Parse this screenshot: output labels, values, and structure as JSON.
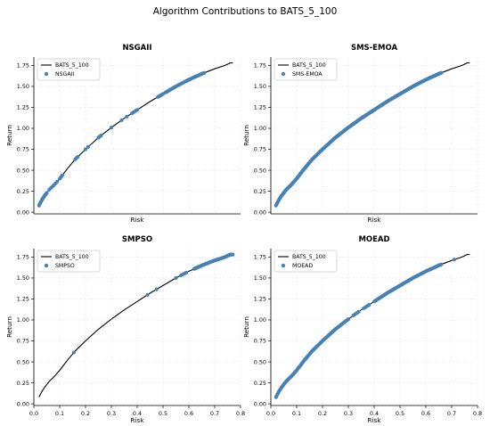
{
  "figure": {
    "title": "Algorithm Contributions to BATS_5_100"
  },
  "chart_data": [
    {
      "type": "scatter",
      "title": "NSGAII",
      "xlabel": "Risk",
      "ylabel": "Return",
      "xlim": [
        0,
        0.8
      ],
      "ylim": [
        -0.02,
        1.85
      ],
      "x_ticks_visible": false,
      "grid": true,
      "legend_position": "top-left",
      "line_series": {
        "name": "BATS_5_100",
        "color": "#000000",
        "x": [
          0.02,
          0.03,
          0.04,
          0.05,
          0.06,
          0.08,
          0.1,
          0.13,
          0.16,
          0.2,
          0.25,
          0.3,
          0.35,
          0.4,
          0.45,
          0.5,
          0.55,
          0.6,
          0.65,
          0.7,
          0.74,
          0.76,
          0.77
        ],
        "y": [
          0.08,
          0.14,
          0.19,
          0.23,
          0.27,
          0.33,
          0.4,
          0.52,
          0.63,
          0.75,
          0.89,
          1.01,
          1.12,
          1.22,
          1.32,
          1.41,
          1.5,
          1.58,
          1.65,
          1.71,
          1.75,
          1.78,
          1.78
        ]
      },
      "scatter_series": {
        "name": "NSGAII",
        "color": "#4682b4",
        "segments": [
          [
            0.02,
            0.05,
            14
          ],
          [
            0.06,
            0.09,
            6
          ],
          [
            0.1,
            0.11,
            3
          ],
          [
            0.16,
            0.17,
            3
          ],
          [
            0.2,
            0.21,
            2
          ],
          [
            0.25,
            0.26,
            3
          ],
          [
            0.3,
            0.31,
            1
          ],
          [
            0.34,
            0.36,
            2
          ],
          [
            0.38,
            0.4,
            4
          ],
          [
            0.48,
            0.5,
            5
          ],
          [
            0.51,
            0.66,
            45
          ]
        ]
      }
    },
    {
      "type": "scatter",
      "title": "SMS-EMOA",
      "xlabel": "Risk",
      "ylabel": "Return",
      "xlim": [
        0,
        0.8
      ],
      "ylim": [
        -0.02,
        1.85
      ],
      "x_ticks_visible": false,
      "grid": true,
      "legend_position": "top-left",
      "line_series": {
        "name": "BATS_5_100",
        "color": "#000000",
        "x": [
          0.02,
          0.03,
          0.04,
          0.05,
          0.06,
          0.08,
          0.1,
          0.13,
          0.16,
          0.2,
          0.25,
          0.3,
          0.35,
          0.4,
          0.45,
          0.5,
          0.55,
          0.6,
          0.65,
          0.7,
          0.74,
          0.76,
          0.77
        ],
        "y": [
          0.08,
          0.14,
          0.19,
          0.23,
          0.27,
          0.33,
          0.4,
          0.52,
          0.63,
          0.75,
          0.89,
          1.01,
          1.12,
          1.22,
          1.32,
          1.41,
          1.5,
          1.58,
          1.65,
          1.71,
          1.75,
          1.78,
          1.78
        ]
      },
      "scatter_series": {
        "name": "SMS-EMOA",
        "color": "#4682b4",
        "segments": [
          [
            0.02,
            0.66,
            260
          ]
        ]
      }
    },
    {
      "type": "scatter",
      "title": "SMPSO",
      "xlabel": "Risk",
      "ylabel": "Return",
      "xlim": [
        0,
        0.8
      ],
      "ylim": [
        -0.02,
        1.85
      ],
      "x_ticks_visible": true,
      "grid": true,
      "legend_position": "top-left",
      "line_series": {
        "name": "BATS_5_100",
        "color": "#000000",
        "x": [
          0.02,
          0.03,
          0.04,
          0.05,
          0.06,
          0.08,
          0.1,
          0.13,
          0.16,
          0.2,
          0.25,
          0.3,
          0.35,
          0.4,
          0.45,
          0.5,
          0.55,
          0.6,
          0.65,
          0.7,
          0.74,
          0.76,
          0.77
        ],
        "y": [
          0.08,
          0.14,
          0.19,
          0.23,
          0.27,
          0.33,
          0.4,
          0.52,
          0.63,
          0.75,
          0.89,
          1.01,
          1.12,
          1.22,
          1.32,
          1.41,
          1.5,
          1.58,
          1.65,
          1.71,
          1.75,
          1.78,
          1.78
        ]
      },
      "scatter_series": {
        "name": "SMPSO",
        "color": "#4682b4",
        "segments": [
          [
            0.155,
            0.155,
            1
          ],
          [
            0.44,
            0.44,
            1
          ],
          [
            0.475,
            0.475,
            1
          ],
          [
            0.55,
            0.55,
            1
          ],
          [
            0.57,
            0.59,
            4
          ],
          [
            0.62,
            0.77,
            55
          ]
        ]
      }
    },
    {
      "type": "scatter",
      "title": "MOEAD",
      "xlabel": "Risk",
      "ylabel": "Return",
      "xlim": [
        0,
        0.8
      ],
      "ylim": [
        -0.02,
        1.85
      ],
      "x_ticks_visible": true,
      "grid": true,
      "legend_position": "top-left",
      "line_series": {
        "name": "BATS_5_100",
        "color": "#000000",
        "x": [
          0.02,
          0.03,
          0.04,
          0.05,
          0.06,
          0.08,
          0.1,
          0.13,
          0.16,
          0.2,
          0.25,
          0.3,
          0.35,
          0.4,
          0.45,
          0.5,
          0.55,
          0.6,
          0.65,
          0.7,
          0.74,
          0.76,
          0.77
        ],
        "y": [
          0.08,
          0.14,
          0.19,
          0.23,
          0.27,
          0.33,
          0.4,
          0.52,
          0.63,
          0.75,
          0.89,
          1.01,
          1.12,
          1.22,
          1.32,
          1.41,
          1.5,
          1.58,
          1.65,
          1.71,
          1.75,
          1.78,
          1.78
        ]
      },
      "scatter_series": {
        "name": "MOEAD",
        "color": "#4682b4",
        "segments": [
          [
            0.02,
            0.3,
            90
          ],
          [
            0.32,
            0.34,
            4
          ],
          [
            0.36,
            0.38,
            4
          ],
          [
            0.4,
            0.66,
            80
          ],
          [
            0.71,
            0.71,
            1
          ]
        ]
      }
    }
  ],
  "axes": {
    "x_ticks": [
      0.0,
      0.1,
      0.2,
      0.3,
      0.4,
      0.5,
      0.6,
      0.7,
      0.8
    ],
    "x_tick_labels": [
      "0.0",
      "0.1",
      "0.2",
      "0.3",
      "0.4",
      "0.5",
      "0.6",
      "0.7",
      "0.8"
    ],
    "y_ticks": [
      0.0,
      0.25,
      0.5,
      0.75,
      1.0,
      1.25,
      1.5,
      1.75
    ],
    "y_tick_labels": [
      "0.00",
      "0.25",
      "0.50",
      "0.75",
      "1.00",
      "1.25",
      "1.50",
      "1.75"
    ]
  }
}
